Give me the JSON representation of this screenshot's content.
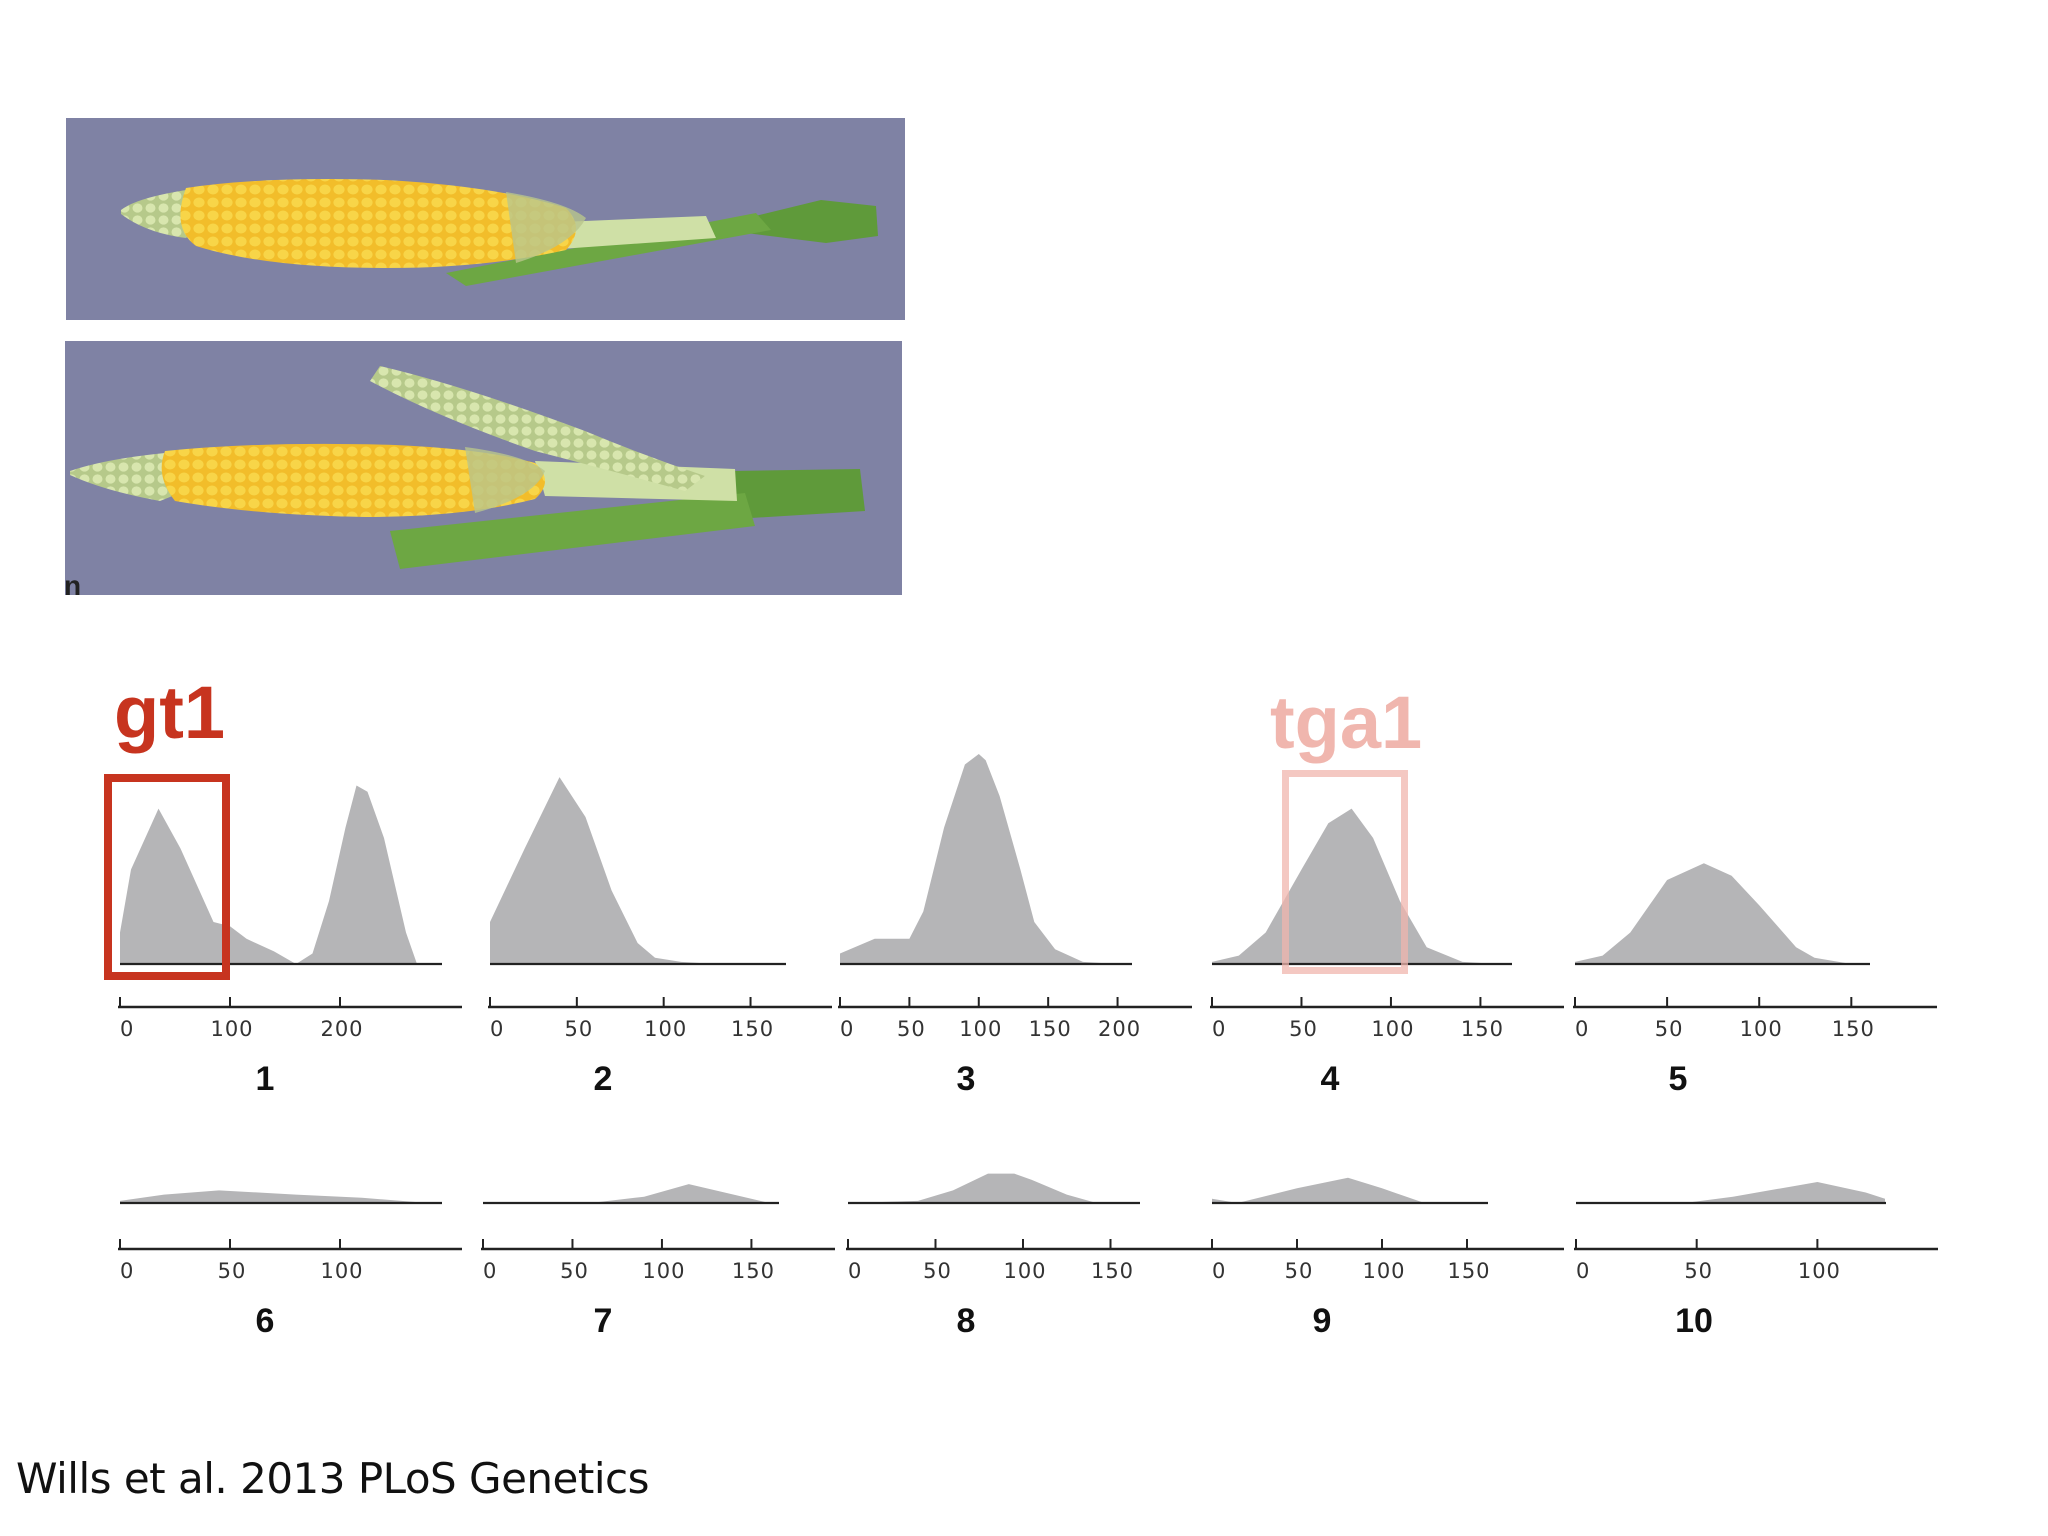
{
  "photos": {
    "stray_mark": "n",
    "background_color": "#7f82a4",
    "kernel_color": "#f2bd2a",
    "husk_color": "#5f9a3a",
    "pale_color": "#cfe0a6"
  },
  "highlights": {
    "gt1": {
      "label": "gt1",
      "color": "#c7341f",
      "chromosome": 1,
      "x_range": [
        0,
        95
      ]
    },
    "tga1": {
      "label": "tga1",
      "color": "#f0b6ae",
      "chromosome": 4,
      "x_range": [
        40,
        115
      ]
    }
  },
  "citation": "Wills et al. 2013 PLoS Genetics",
  "chart_data": [
    {
      "type": "area",
      "label": "1",
      "ticks": [
        0,
        100,
        200
      ],
      "xlim": [
        0,
        300
      ],
      "ylim": [
        0,
        1
      ],
      "x": [
        0,
        10,
        35,
        55,
        85,
        100,
        115,
        140,
        160,
        175,
        190,
        205,
        215,
        225,
        240,
        260,
        270
      ],
      "y": [
        0.15,
        0.45,
        0.74,
        0.55,
        0.2,
        0.18,
        0.12,
        0.06,
        0.0,
        0.05,
        0.3,
        0.65,
        0.85,
        0.82,
        0.6,
        0.15,
        0.0
      ],
      "highlight": "gt1"
    },
    {
      "type": "area",
      "label": "2",
      "ticks": [
        0,
        50,
        100,
        150
      ],
      "xlim": [
        0,
        190
      ],
      "ylim": [
        0,
        1
      ],
      "x": [
        0,
        0,
        20,
        40,
        55,
        70,
        85,
        95,
        110,
        130,
        165
      ],
      "y": [
        0.0,
        0.2,
        0.55,
        0.89,
        0.7,
        0.35,
        0.1,
        0.03,
        0.01,
        0.0,
        0.0
      ]
    },
    {
      "type": "area",
      "label": "3",
      "ticks": [
        0,
        50,
        100,
        150,
        200
      ],
      "xlim": [
        0,
        245
      ],
      "ylim": [
        0,
        1
      ],
      "x": [
        0,
        25,
        50,
        60,
        75,
        90,
        100,
        105,
        115,
        130,
        140,
        155,
        175,
        200
      ],
      "y": [
        0.05,
        0.12,
        0.12,
        0.25,
        0.65,
        0.95,
        1.0,
        0.97,
        0.8,
        0.45,
        0.2,
        0.07,
        0.01,
        0.0
      ]
    },
    {
      "type": "area",
      "label": "4",
      "ticks": [
        0,
        50,
        100,
        150
      ],
      "xlim": [
        0,
        190
      ],
      "ylim": [
        0,
        1
      ],
      "x": [
        0,
        15,
        30,
        50,
        65,
        78,
        90,
        105,
        120,
        140,
        160
      ],
      "y": [
        0.01,
        0.04,
        0.15,
        0.45,
        0.67,
        0.74,
        0.6,
        0.3,
        0.08,
        0.01,
        0.0
      ],
      "highlight": "tga1"
    },
    {
      "type": "area",
      "label": "5",
      "ticks": [
        0,
        50,
        100,
        150
      ],
      "xlim": [
        0,
        190
      ],
      "ylim": [
        0,
        1
      ],
      "x": [
        0,
        15,
        30,
        50,
        70,
        85,
        100,
        120,
        130,
        150,
        165
      ],
      "y": [
        0.01,
        0.04,
        0.15,
        0.4,
        0.48,
        0.42,
        0.28,
        0.08,
        0.03,
        0.0,
        0.0
      ]
    },
    {
      "type": "area",
      "label": "6",
      "ticks": [
        0,
        50,
        100
      ],
      "xlim": [
        0,
        150
      ],
      "ylim": [
        0,
        1
      ],
      "x": [
        0,
        20,
        45,
        80,
        110,
        140
      ],
      "y": [
        0.01,
        0.04,
        0.06,
        0.04,
        0.025,
        0.0
      ]
    },
    {
      "type": "area",
      "label": "7",
      "ticks": [
        0,
        50,
        100,
        150
      ],
      "xlim": [
        0,
        190
      ],
      "ylim": [
        0,
        1
      ],
      "x": [
        0,
        60,
        90,
        115,
        135,
        160
      ],
      "y": [
        0.0,
        0.0,
        0.03,
        0.09,
        0.05,
        0.0
      ]
    },
    {
      "type": "area",
      "label": "8",
      "ticks": [
        0,
        50,
        100,
        150
      ],
      "xlim": [
        0,
        200
      ],
      "ylim": [
        0,
        1
      ],
      "x": [
        0,
        40,
        60,
        80,
        95,
        105,
        125,
        140,
        155
      ],
      "y": [
        0.0,
        0.01,
        0.06,
        0.14,
        0.14,
        0.11,
        0.04,
        0.005,
        0.0
      ]
    },
    {
      "type": "area",
      "label": "9",
      "ticks": [
        0,
        50,
        100,
        150
      ],
      "xlim": [
        0,
        200
      ],
      "ylim": [
        0,
        1
      ],
      "x": [
        0,
        15,
        30,
        50,
        80,
        100,
        125,
        160
      ],
      "y": [
        0.02,
        0.0,
        0.03,
        0.07,
        0.12,
        0.07,
        0.0,
        0.0
      ]
    },
    {
      "type": "area",
      "label": "10",
      "ticks": [
        0,
        50,
        100
      ],
      "xlim": [
        0,
        145
      ],
      "ylim": [
        0,
        1
      ],
      "x": [
        0,
        45,
        65,
        90,
        100,
        120,
        128
      ],
      "y": [
        0.0,
        0.0,
        0.03,
        0.08,
        0.1,
        0.05,
        0.02
      ]
    }
  ]
}
